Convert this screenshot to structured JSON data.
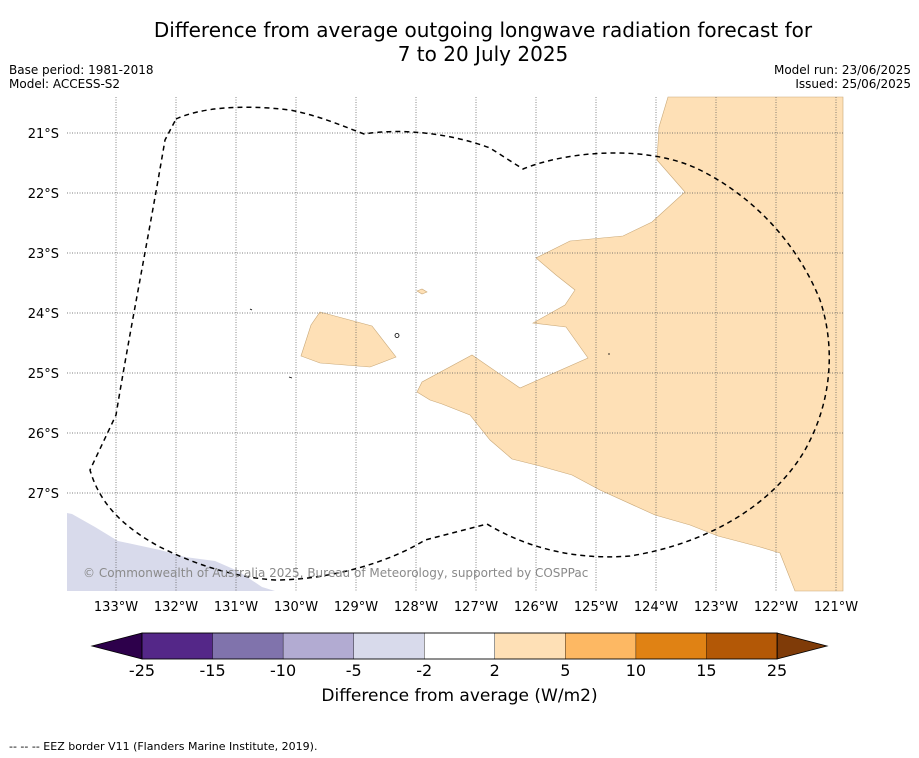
{
  "title_line1": "Difference from average outgoing longwave radiation forecast for",
  "title_line2": "7 to 20 July 2025",
  "base_period": "Base period: 1981-2018",
  "model": "Model: ACCESS-S2",
  "model_run": "Model run: 23/06/2025",
  "issued": "Issued: 25/06/2025",
  "copyright": "© Commonwealth of Australia 2025, Bureau of Meteorology, supported by COSPPac",
  "lat_labels": [
    "21°S",
    "22°S",
    "23°S",
    "24°S",
    "25°S",
    "26°S",
    "27°S"
  ],
  "lon_labels": [
    "133°W",
    "132°W",
    "131°W",
    "130°W",
    "129°W",
    "128°W",
    "127°W",
    "126°W",
    "125°W",
    "124°W",
    "123°W",
    "122°W",
    "121°W"
  ],
  "colorbar": {
    "ticks": [
      "-25",
      "-15",
      "-10",
      "-5",
      "-2",
      "2",
      "5",
      "10",
      "15",
      "25"
    ],
    "colors": [
      "#542788",
      "#8073ac",
      "#b2abd2",
      "#d8daeb",
      "#ffffff",
      "#fee0b6",
      "#fdb863",
      "#e08214",
      "#b35806"
    ],
    "under_color": "#2d004b",
    "over_color": "#7f3b08",
    "label": "Difference from average (W/m2)"
  },
  "legend_footer": "--  --  -- EEZ border V11 (Flanders Marine Institute, 2019)."
}
